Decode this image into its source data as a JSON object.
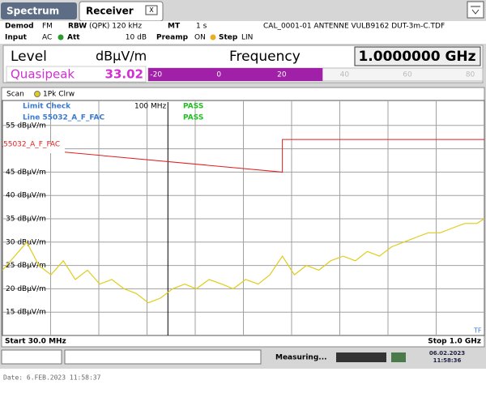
{
  "tabs": [
    "Spectrum",
    "Receiver"
  ],
  "settings": {
    "demod_label": "Demod",
    "demod": "FM",
    "rbw_label": "RBW",
    "rbw": "(QPK) 120 kHz",
    "mt_label": "MT",
    "mt": "1 s",
    "transducer": "CAL_0001-01 ANTENNE VULB9162 DUT-3m-C.TDF",
    "input_label": "Input",
    "input": "AC",
    "att_label": "Att",
    "att": "10 dB",
    "preamp_label": "Preamp",
    "preamp": "ON",
    "step_label": "Step",
    "step": "LIN"
  },
  "readout": {
    "level_label": "Level",
    "unit": "dBµV/m",
    "frequency_label": "Frequency",
    "frequency": "1.0000000 GHz",
    "detector": "Quasipeak",
    "value": 33.02,
    "scale_lim": [
      -22.5,
      84.5
    ],
    "scale_ticks": [
      -20,
      0,
      20,
      40,
      60,
      80
    ]
  },
  "chart_data": {
    "type": "line",
    "header": "Scan",
    "log_x": true,
    "grid": true,
    "x": [
      30,
      32.8,
      35.8,
      39.1,
      42.7,
      46.7,
      51,
      55.7,
      60.9,
      66.5,
      72.6,
      79.4,
      86.7,
      94.7,
      103.5,
      113,
      123,
      135,
      148,
      161,
      176,
      193,
      210,
      230,
      251,
      274,
      300,
      327,
      358,
      391,
      427,
      466,
      509,
      556,
      608,
      664,
      725,
      792,
      866,
      946,
      1000
    ],
    "series": [
      {
        "name": "1Pk Clrw",
        "color": "#e0cc1a",
        "values": [
          24,
          27,
          30,
          25,
          23,
          26,
          22,
          24,
          21,
          22,
          20,
          19,
          17,
          18,
          20,
          21,
          20,
          22,
          21,
          20,
          22,
          21,
          23,
          27,
          23,
          25,
          24,
          26,
          27,
          26,
          28,
          27,
          29,
          30,
          31,
          32,
          32,
          33,
          34,
          34,
          35
        ]
      }
    ],
    "limit_line": {
      "name": "55032_A_F_FAC",
      "color": "#e02020",
      "x": [
        30,
        230,
        230,
        1000
      ],
      "values": [
        50.5,
        45,
        52,
        52
      ]
    },
    "xlim": [
      30,
      1000
    ],
    "ylim": [
      10,
      60
    ],
    "yticks": [
      {
        "value": 15,
        "label": "15 dBµV/m"
      },
      {
        "value": 20,
        "label": "20 dBµV/m"
      },
      {
        "value": 25,
        "label": "25 dBµV/m"
      },
      {
        "value": 30,
        "label": "30 dBµV/m"
      },
      {
        "value": 35,
        "label": "35 dBµV/m"
      },
      {
        "value": 40,
        "label": "40 dBµV/m"
      },
      {
        "value": 45,
        "label": "45 dBµV/m"
      },
      {
        "value": 50,
        "label": "50 dBµV/m"
      },
      {
        "value": 55,
        "label": "55 dBµV/m"
      }
    ],
    "marker": {
      "x": 100,
      "label": "100 MHz"
    },
    "start_label": "Start 30.0 MHz",
    "stop_label": "Stop 1.0 GHz",
    "limit_check": {
      "title": "Limit Check",
      "result": "PASS",
      "line_label": "Line 55032_A_F_FAC",
      "line_result": "PASS"
    },
    "tf": "TF"
  },
  "status": {
    "state": "Measuring...",
    "date": "06.02.2023",
    "time": "11:58:36"
  },
  "footer": "Date: 6.FEB.2023  11:58:37"
}
